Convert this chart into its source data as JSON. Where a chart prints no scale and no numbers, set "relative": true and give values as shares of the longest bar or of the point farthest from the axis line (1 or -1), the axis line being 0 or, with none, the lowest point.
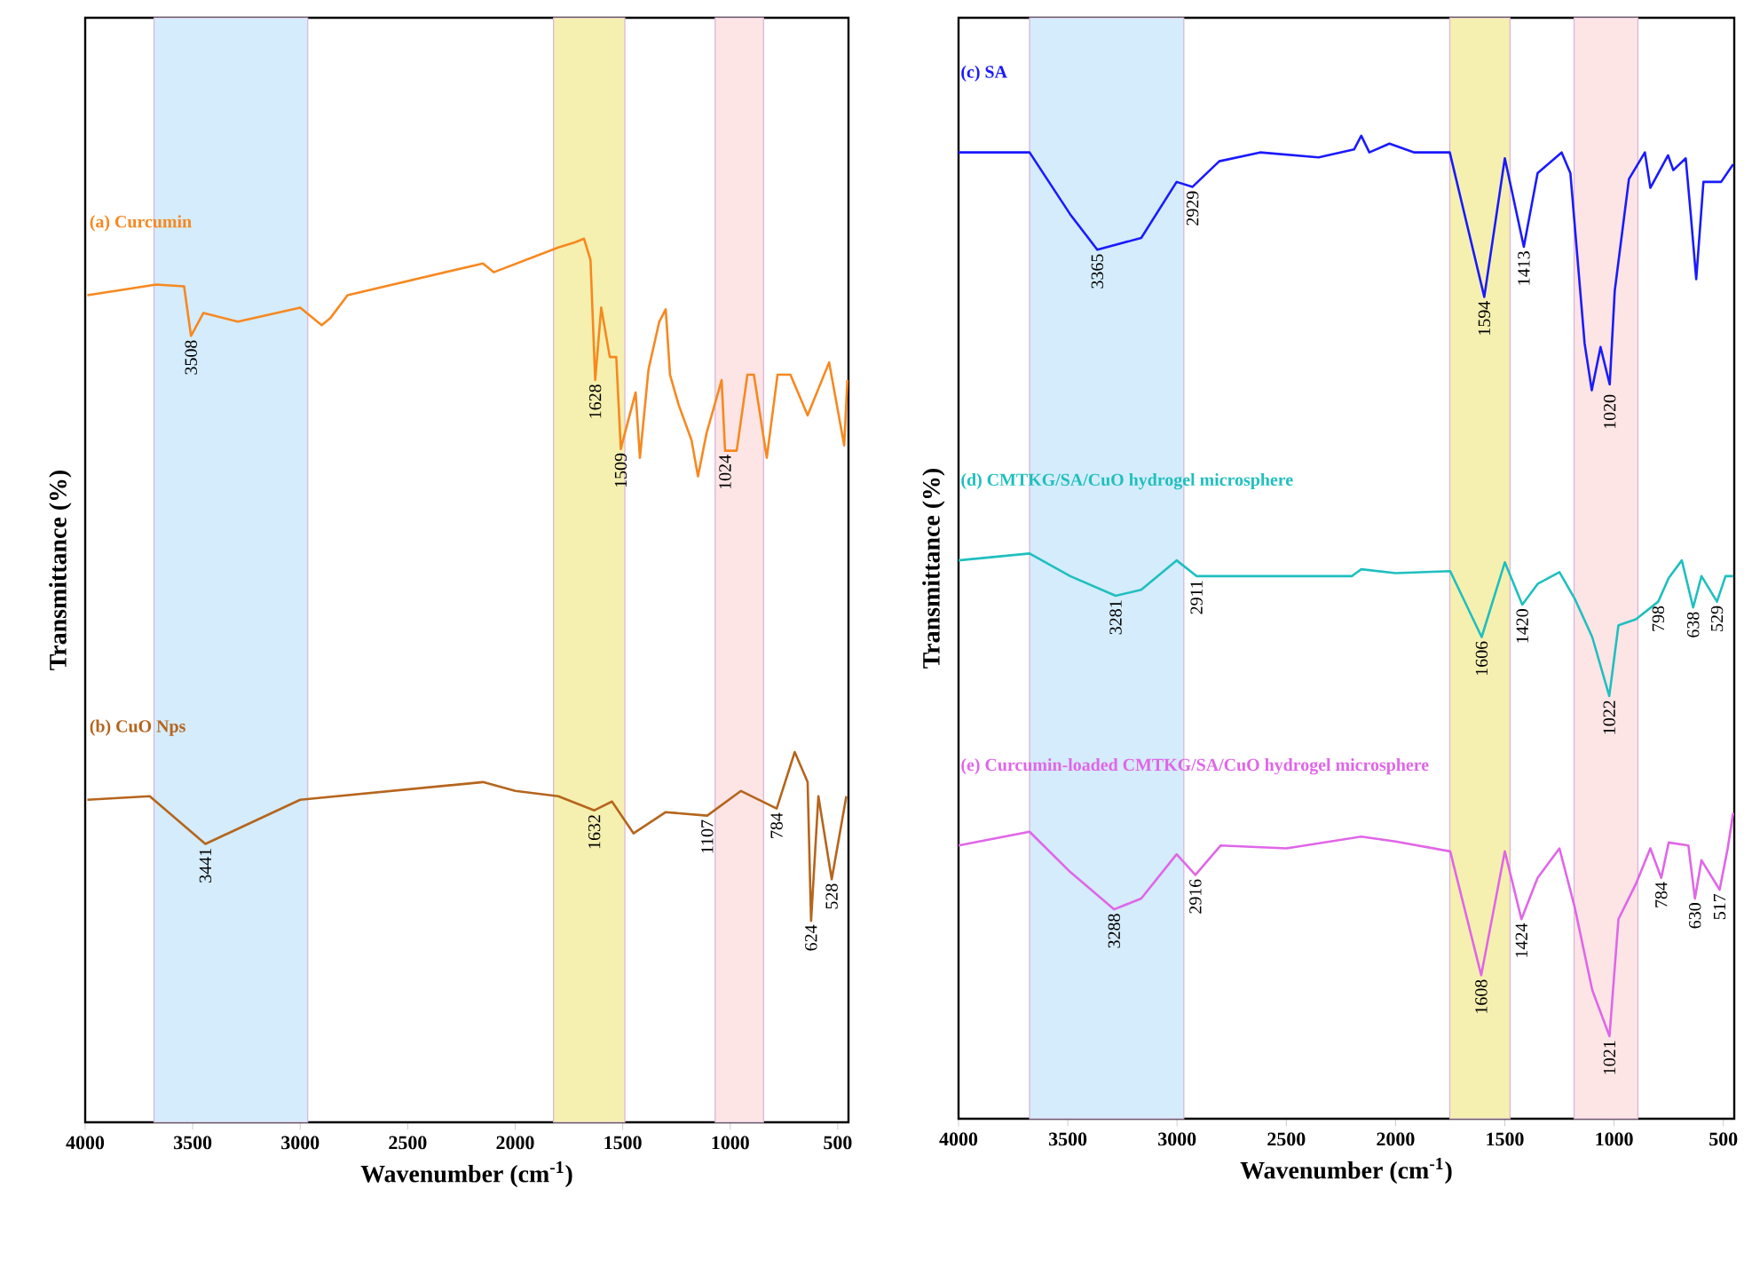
{
  "chart_data": [
    {
      "type": "line",
      "relative": true,
      "xlabel": "Wavenumber (cm$^{-1}$)",
      "ylabel": "Transmittance (%)",
      "xlim": [
        4000,
        450
      ],
      "xticks": [
        4000,
        3500,
        3000,
        2500,
        2000,
        1500,
        1000,
        500
      ],
      "series": [
        {
          "name": "(a) Curcumin",
          "color": "#f7881f",
          "x": [
            3990,
            3670,
            3540,
            3508,
            3450,
            3290,
            3000,
            2900,
            2860,
            2780,
            2150,
            2100,
            1800,
            1720,
            1680,
            1650,
            1628,
            1600,
            1560,
            1530,
            1509,
            1440,
            1420,
            1380,
            1330,
            1300,
            1280,
            1240,
            1180,
            1150,
            1110,
            1040,
            1024,
            970,
            920,
            890,
            830,
            780,
            720,
            640,
            540,
            470,
            455
          ],
          "values": [
            0.936,
            0.948,
            0.946,
            0.89,
            0.916,
            0.906,
            0.922,
            0.902,
            0.91,
            0.936,
            0.972,
            0.962,
            0.99,
            0.996,
            1.0,
            0.976,
            0.84,
            0.922,
            0.866,
            0.866,
            0.762,
            0.826,
            0.752,
            0.852,
            0.906,
            0.92,
            0.846,
            0.812,
            0.772,
            0.731,
            0.78,
            0.84,
            0.76,
            0.76,
            0.846,
            0.846,
            0.752,
            0.846,
            0.846,
            0.8,
            0.86,
            0.766,
            0.84
          ]
        },
        {
          "name": "(b) CuO Nps",
          "color": "#b5651d",
          "x": [
            3990,
            3700,
            3441,
            3000,
            2150,
            2000,
            1800,
            1632,
            1550,
            1450,
            1300,
            1107,
            950,
            784,
            700,
            640,
            624,
            590,
            528,
            460
          ],
          "values": [
            0.365,
            0.369,
            0.315,
            0.365,
            0.385,
            0.375,
            0.369,
            0.353,
            0.363,
            0.327,
            0.351,
            0.347,
            0.375,
            0.355,
            0.419,
            0.385,
            0.228,
            0.369,
            0.275,
            0.369
          ]
        }
      ],
      "bands": [
        {
          "axis": "x",
          "from": 3680,
          "to": 2965,
          "color": "#d4ecfb"
        },
        {
          "axis": "x",
          "from": 1822,
          "to": 1490,
          "color": "#f5f0b0"
        },
        {
          "axis": "x",
          "from": 1070,
          "to": 845,
          "color": "#fde5e5"
        }
      ],
      "annotations": [
        {
          "text": "3508",
          "x": 3508,
          "y": 0.89
        },
        {
          "text": "1628",
          "x": 1628,
          "y": 0.84
        },
        {
          "text": "1509",
          "x": 1509,
          "y": 0.762
        },
        {
          "text": "1024",
          "x": 1024,
          "y": 0.76
        },
        {
          "text": "3441",
          "x": 3441,
          "y": 0.315
        },
        {
          "text": "1632",
          "x": 1632,
          "y": 0.353
        },
        {
          "text": "1107",
          "x": 1107,
          "y": 0.347
        },
        {
          "text": "784",
          "x": 784,
          "y": 0.355
        },
        {
          "text": "624",
          "x": 624,
          "y": 0.228
        },
        {
          "text": "528",
          "x": 528,
          "y": 0.275
        }
      ]
    },
    {
      "type": "line",
      "relative": true,
      "xlabel": "Wavenumber (cm$^{-1}$)",
      "ylabel": "Transmittance (%)",
      "xlim": [
        4000,
        450
      ],
      "xticks": [
        4000,
        3500,
        3000,
        2500,
        2000,
        1500,
        1000,
        500
      ],
      "series": [
        {
          "name": "(c) SA",
          "color": "#1a1aff",
          "x": [
            4000,
            3675,
            3489,
            3365,
            3164,
            3002,
            2929,
            2807,
            2620,
            2352,
            2190,
            2157,
            2120,
            2028,
            1914,
            1752,
            1594,
            1500,
            1413,
            1350,
            1240,
            1200,
            1135,
            1102,
            1062,
            1020,
            997,
            932,
            859,
            834,
            753,
            729,
            672,
            648,
            624,
            591,
            510,
            455
          ],
          "values": [
            0.983,
            0.983,
            0.92,
            0.884,
            0.896,
            0.953,
            0.948,
            0.974,
            0.983,
            0.978,
            0.986,
            1.0,
            0.983,
            0.992,
            0.983,
            0.983,
            0.836,
            0.977,
            0.887,
            0.962,
            0.983,
            0.962,
            0.789,
            0.741,
            0.785,
            0.747,
            0.842,
            0.956,
            0.983,
            0.947,
            0.98,
            0.965,
            0.977,
            0.917,
            0.854,
            0.953,
            0.953,
            0.971
          ]
        },
        {
          "name": "(d) CMTKG/SA/CuO hydrogel microsphere",
          "color": "#1fbfbf",
          "x": [
            4000,
            3675,
            3489,
            3281,
            3164,
            3002,
            2911,
            2700,
            2200,
            2157,
            2000,
            1750,
            1606,
            1500,
            1420,
            1350,
            1250,
            1180,
            1100,
            1022,
            980,
            900,
            798,
            750,
            690,
            638,
            600,
            529,
            490,
            455
          ],
          "values": [
            0.568,
            0.575,
            0.552,
            0.532,
            0.538,
            0.568,
            0.552,
            0.552,
            0.552,
            0.559,
            0.555,
            0.557,
            0.49,
            0.566,
            0.523,
            0.544,
            0.556,
            0.529,
            0.49,
            0.43,
            0.502,
            0.508,
            0.526,
            0.55,
            0.568,
            0.52,
            0.552,
            0.526,
            0.552,
            0.552
          ]
        },
        {
          "name": "(e) Curcumin-loaded CMTKG/SA/CuO hydrogel microsphere",
          "color": "#e066e8",
          "x": [
            4000,
            3675,
            3489,
            3288,
            3164,
            3002,
            2916,
            2800,
            2500,
            2157,
            2000,
            1750,
            1608,
            1500,
            1424,
            1350,
            1250,
            1180,
            1100,
            1021,
            980,
            900,
            834,
            784,
            750,
            660,
            630,
            600,
            517,
            480,
            455
          ],
          "values": [
            0.278,
            0.292,
            0.251,
            0.213,
            0.224,
            0.269,
            0.248,
            0.278,
            0.275,
            0.287,
            0.282,
            0.272,
            0.146,
            0.272,
            0.203,
            0.245,
            0.275,
            0.215,
            0.131,
            0.084,
            0.203,
            0.239,
            0.275,
            0.245,
            0.281,
            0.278,
            0.224,
            0.263,
            0.233,
            0.275,
            0.311
          ]
        }
      ],
      "bands": [
        {
          "axis": "x",
          "from": 3675,
          "to": 2969,
          "color": "#d4ecfb"
        },
        {
          "axis": "x",
          "from": 1752,
          "to": 1476,
          "color": "#f5f0b0"
        },
        {
          "axis": "x",
          "from": 1183,
          "to": 891,
          "color": "#fde5e5"
        }
      ],
      "annotations": [
        {
          "text": "3365",
          "x": 3365,
          "y": 0.884
        },
        {
          "text": "2929",
          "x": 2929,
          "y": 0.948
        },
        {
          "text": "1594",
          "x": 1594,
          "y": 0.836
        },
        {
          "text": "1413",
          "x": 1413,
          "y": 0.887
        },
        {
          "text": "1020",
          "x": 1020,
          "y": 0.741
        },
        {
          "text": "3281",
          "x": 3281,
          "y": 0.532
        },
        {
          "text": "2911",
          "x": 2911,
          "y": 0.552
        },
        {
          "text": "1606",
          "x": 1606,
          "y": 0.49
        },
        {
          "text": "1420",
          "x": 1420,
          "y": 0.523
        },
        {
          "text": "1022",
          "x": 1022,
          "y": 0.43
        },
        {
          "text": "798",
          "x": 798,
          "y": 0.526
        },
        {
          "text": "638",
          "x": 638,
          "y": 0.52
        },
        {
          "text": "529",
          "x": 529,
          "y": 0.526
        },
        {
          "text": "3288",
          "x": 3288,
          "y": 0.213
        },
        {
          "text": "2916",
          "x": 2916,
          "y": 0.248
        },
        {
          "text": "1608",
          "x": 1608,
          "y": 0.146
        },
        {
          "text": "1424",
          "x": 1424,
          "y": 0.203
        },
        {
          "text": "1021",
          "x": 1021,
          "y": 0.084
        },
        {
          "text": "784",
          "x": 784,
          "y": 0.245
        },
        {
          "text": "630",
          "x": 630,
          "y": 0.224
        },
        {
          "text": "517",
          "x": 517,
          "y": 0.233
        }
      ]
    }
  ]
}
